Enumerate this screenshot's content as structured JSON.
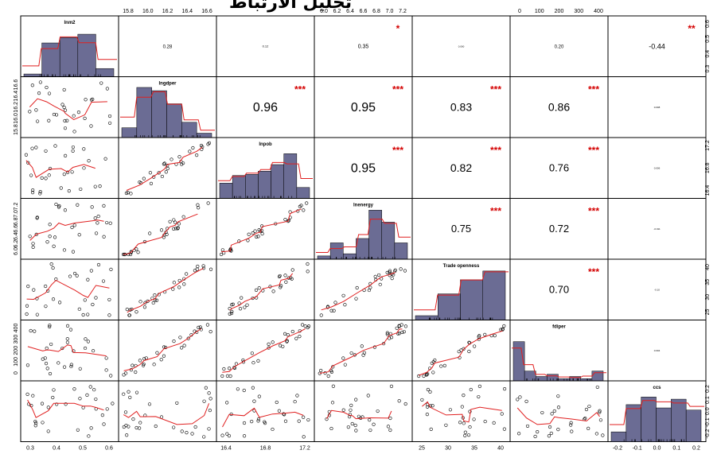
{
  "title": "تحليل الارتباط",
  "chart_data": {
    "type": "scatter-matrix",
    "variables": [
      "lnm2",
      "lngdper",
      "lnpob",
      "lnenergy",
      "Trade openness",
      "fdiper",
      "ccs"
    ],
    "axis_ticks": [
      {
        "side": "bottom",
        "labels": [
          "0.3",
          "0.4",
          "0.5",
          "0.6"
        ]
      },
      {
        "side": "top",
        "labels": [
          "15.8",
          "16.0",
          "16.2",
          "16.4",
          "16.6"
        ]
      },
      {
        "side": "bottom",
        "labels": [
          "16.4",
          "16.8",
          "17.2"
        ]
      },
      {
        "side": "top",
        "labels": [
          "6.0",
          "6.2",
          "6.4",
          "6.6",
          "6.8",
          "7.0",
          "7.2"
        ]
      },
      {
        "side": "bottom",
        "labels": [
          "25",
          "30",
          "35",
          "40"
        ]
      },
      {
        "side": "top",
        "labels": [
          "0",
          "100",
          "200",
          "300",
          "400"
        ]
      },
      {
        "side": "bottom",
        "labels": [
          "-0.2",
          "-0.1",
          "0.0",
          "0.1",
          "0.2"
        ]
      }
    ],
    "row_ticks": [
      {
        "side": "right",
        "labels": [
          "0.3",
          "0.4",
          "0.5",
          "0.6"
        ]
      },
      {
        "side": "left",
        "labels": [
          "15.8",
          "16.0",
          "16.2",
          "16.4",
          "16.6"
        ]
      },
      {
        "side": "right",
        "labels": [
          "16.4",
          "16.8",
          "17.2"
        ]
      },
      {
        "side": "left",
        "labels": [
          "6.0",
          "6.2",
          "6.4",
          "6.6",
          "6.8",
          "7.0",
          "7.2"
        ]
      },
      {
        "side": "right",
        "labels": [
          "25",
          "30",
          "35",
          "40"
        ]
      },
      {
        "side": "left",
        "labels": [
          "0",
          "100",
          "200",
          "300",
          "400"
        ]
      },
      {
        "side": "right",
        "labels": [
          "-0.2",
          "-0.1",
          "0.0",
          "0.1",
          "0.2"
        ]
      }
    ],
    "correlations": [
      {
        "row": 0,
        "col": 1,
        "value": "0.28",
        "stars": "",
        "size": 6
      },
      {
        "row": 0,
        "col": 2,
        "value": "0.12",
        "stars": "",
        "size": 4
      },
      {
        "row": 0,
        "col": 3,
        "value": "0.35",
        "stars": "*",
        "size": 7
      },
      {
        "row": 0,
        "col": 4,
        "value": "0.000",
        "stars": "",
        "size": 3
      },
      {
        "row": 0,
        "col": 5,
        "value": "0.20",
        "stars": "",
        "size": 6
      },
      {
        "row": 0,
        "col": 6,
        "value": "-0.44",
        "stars": "**",
        "size": 9
      },
      {
        "row": 1,
        "col": 2,
        "value": "0.96",
        "stars": "***",
        "size": 16
      },
      {
        "row": 1,
        "col": 3,
        "value": "0.95",
        "stars": "***",
        "size": 16
      },
      {
        "row": 1,
        "col": 4,
        "value": "0.83",
        "stars": "***",
        "size": 14
      },
      {
        "row": 1,
        "col": 5,
        "value": "0.86",
        "stars": "***",
        "size": 14
      },
      {
        "row": 1,
        "col": 6,
        "value": "0.008",
        "stars": "",
        "size": 3
      },
      {
        "row": 2,
        "col": 3,
        "value": "0.95",
        "stars": "***",
        "size": 16
      },
      {
        "row": 2,
        "col": 4,
        "value": "0.82",
        "stars": "***",
        "size": 14
      },
      {
        "row": 2,
        "col": 5,
        "value": "0.76",
        "stars": "***",
        "size": 13
      },
      {
        "row": 2,
        "col": 6,
        "value": "0.006",
        "stars": "",
        "size": 3
      },
      {
        "row": 3,
        "col": 4,
        "value": "0.75",
        "stars": "***",
        "size": 13
      },
      {
        "row": 3,
        "col": 5,
        "value": "0.72",
        "stars": "***",
        "size": 13
      },
      {
        "row": 3,
        "col": 6,
        "value": "-0.011",
        "stars": "",
        "size": 3
      },
      {
        "row": 4,
        "col": 5,
        "value": "0.70",
        "stars": "***",
        "size": 13
      },
      {
        "row": 4,
        "col": 6,
        "value": "-0.10",
        "stars": "",
        "size": 3
      },
      {
        "row": 5,
        "col": 6,
        "value": "0.004",
        "stars": "",
        "size": 3
      }
    ],
    "histograms": [
      [
        0.05,
        0.62,
        0.72,
        0.78,
        0.15
      ],
      [
        0.18,
        0.92,
        0.86,
        0.62,
        0.28,
        0.08
      ],
      [
        0.28,
        0.42,
        0.44,
        0.5,
        0.62,
        0.82,
        0.2
      ],
      [
        0.06,
        0.3,
        0.1,
        0.38,
        0.9,
        0.68,
        0.3
      ],
      [
        0.08,
        0.48,
        0.74,
        0.9
      ],
      [
        0.72,
        0.18,
        0.08,
        0.12,
        0.04,
        0.08,
        0.04,
        0.18
      ],
      [
        0.18,
        0.68,
        0.82,
        0.62,
        0.78,
        0.58
      ]
    ],
    "colors": {
      "bar": "#6b6c94",
      "smooth": "#e02020",
      "stars": "#d40000",
      "density": "#e02020"
    }
  }
}
